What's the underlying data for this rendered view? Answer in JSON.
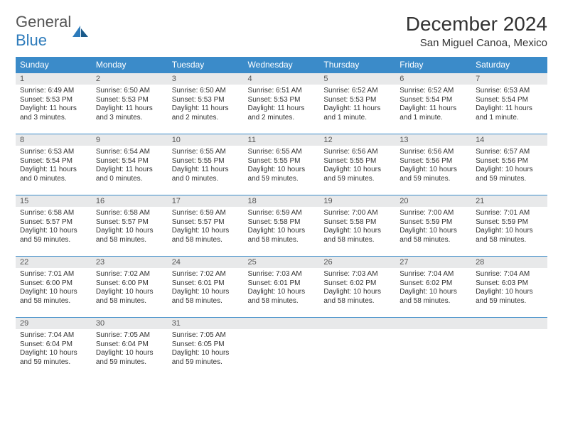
{
  "logo": {
    "general": "General",
    "blue": "Blue"
  },
  "title": "December 2024",
  "location": "San Miguel Canoa, Mexico",
  "colors": {
    "header_bg": "#3b8bc9",
    "header_text": "#ffffff",
    "daynum_bg": "#e8e9ea",
    "border": "#3b8bc9",
    "text": "#333333",
    "logo_gray": "#555555",
    "logo_blue": "#2d7bbb",
    "page_bg": "#ffffff"
  },
  "day_names": [
    "Sunday",
    "Monday",
    "Tuesday",
    "Wednesday",
    "Thursday",
    "Friday",
    "Saturday"
  ],
  "weeks": [
    [
      {
        "n": "1",
        "sr": "6:49 AM",
        "ss": "5:53 PM",
        "dl": "11 hours and 3 minutes."
      },
      {
        "n": "2",
        "sr": "6:50 AM",
        "ss": "5:53 PM",
        "dl": "11 hours and 3 minutes."
      },
      {
        "n": "3",
        "sr": "6:50 AM",
        "ss": "5:53 PM",
        "dl": "11 hours and 2 minutes."
      },
      {
        "n": "4",
        "sr": "6:51 AM",
        "ss": "5:53 PM",
        "dl": "11 hours and 2 minutes."
      },
      {
        "n": "5",
        "sr": "6:52 AM",
        "ss": "5:53 PM",
        "dl": "11 hours and 1 minute."
      },
      {
        "n": "6",
        "sr": "6:52 AM",
        "ss": "5:54 PM",
        "dl": "11 hours and 1 minute."
      },
      {
        "n": "7",
        "sr": "6:53 AM",
        "ss": "5:54 PM",
        "dl": "11 hours and 1 minute."
      }
    ],
    [
      {
        "n": "8",
        "sr": "6:53 AM",
        "ss": "5:54 PM",
        "dl": "11 hours and 0 minutes."
      },
      {
        "n": "9",
        "sr": "6:54 AM",
        "ss": "5:54 PM",
        "dl": "11 hours and 0 minutes."
      },
      {
        "n": "10",
        "sr": "6:55 AM",
        "ss": "5:55 PM",
        "dl": "11 hours and 0 minutes."
      },
      {
        "n": "11",
        "sr": "6:55 AM",
        "ss": "5:55 PM",
        "dl": "10 hours and 59 minutes."
      },
      {
        "n": "12",
        "sr": "6:56 AM",
        "ss": "5:55 PM",
        "dl": "10 hours and 59 minutes."
      },
      {
        "n": "13",
        "sr": "6:56 AM",
        "ss": "5:56 PM",
        "dl": "10 hours and 59 minutes."
      },
      {
        "n": "14",
        "sr": "6:57 AM",
        "ss": "5:56 PM",
        "dl": "10 hours and 59 minutes."
      }
    ],
    [
      {
        "n": "15",
        "sr": "6:58 AM",
        "ss": "5:57 PM",
        "dl": "10 hours and 59 minutes."
      },
      {
        "n": "16",
        "sr": "6:58 AM",
        "ss": "5:57 PM",
        "dl": "10 hours and 58 minutes."
      },
      {
        "n": "17",
        "sr": "6:59 AM",
        "ss": "5:57 PM",
        "dl": "10 hours and 58 minutes."
      },
      {
        "n": "18",
        "sr": "6:59 AM",
        "ss": "5:58 PM",
        "dl": "10 hours and 58 minutes."
      },
      {
        "n": "19",
        "sr": "7:00 AM",
        "ss": "5:58 PM",
        "dl": "10 hours and 58 minutes."
      },
      {
        "n": "20",
        "sr": "7:00 AM",
        "ss": "5:59 PM",
        "dl": "10 hours and 58 minutes."
      },
      {
        "n": "21",
        "sr": "7:01 AM",
        "ss": "5:59 PM",
        "dl": "10 hours and 58 minutes."
      }
    ],
    [
      {
        "n": "22",
        "sr": "7:01 AM",
        "ss": "6:00 PM",
        "dl": "10 hours and 58 minutes."
      },
      {
        "n": "23",
        "sr": "7:02 AM",
        "ss": "6:00 PM",
        "dl": "10 hours and 58 minutes."
      },
      {
        "n": "24",
        "sr": "7:02 AM",
        "ss": "6:01 PM",
        "dl": "10 hours and 58 minutes."
      },
      {
        "n": "25",
        "sr": "7:03 AM",
        "ss": "6:01 PM",
        "dl": "10 hours and 58 minutes."
      },
      {
        "n": "26",
        "sr": "7:03 AM",
        "ss": "6:02 PM",
        "dl": "10 hours and 58 minutes."
      },
      {
        "n": "27",
        "sr": "7:04 AM",
        "ss": "6:02 PM",
        "dl": "10 hours and 58 minutes."
      },
      {
        "n": "28",
        "sr": "7:04 AM",
        "ss": "6:03 PM",
        "dl": "10 hours and 59 minutes."
      }
    ],
    [
      {
        "n": "29",
        "sr": "7:04 AM",
        "ss": "6:04 PM",
        "dl": "10 hours and 59 minutes."
      },
      {
        "n": "30",
        "sr": "7:05 AM",
        "ss": "6:04 PM",
        "dl": "10 hours and 59 minutes."
      },
      {
        "n": "31",
        "sr": "7:05 AM",
        "ss": "6:05 PM",
        "dl": "10 hours and 59 minutes."
      },
      null,
      null,
      null,
      null
    ]
  ],
  "labels": {
    "sunrise": "Sunrise:",
    "sunset": "Sunset:",
    "daylight": "Daylight:"
  }
}
